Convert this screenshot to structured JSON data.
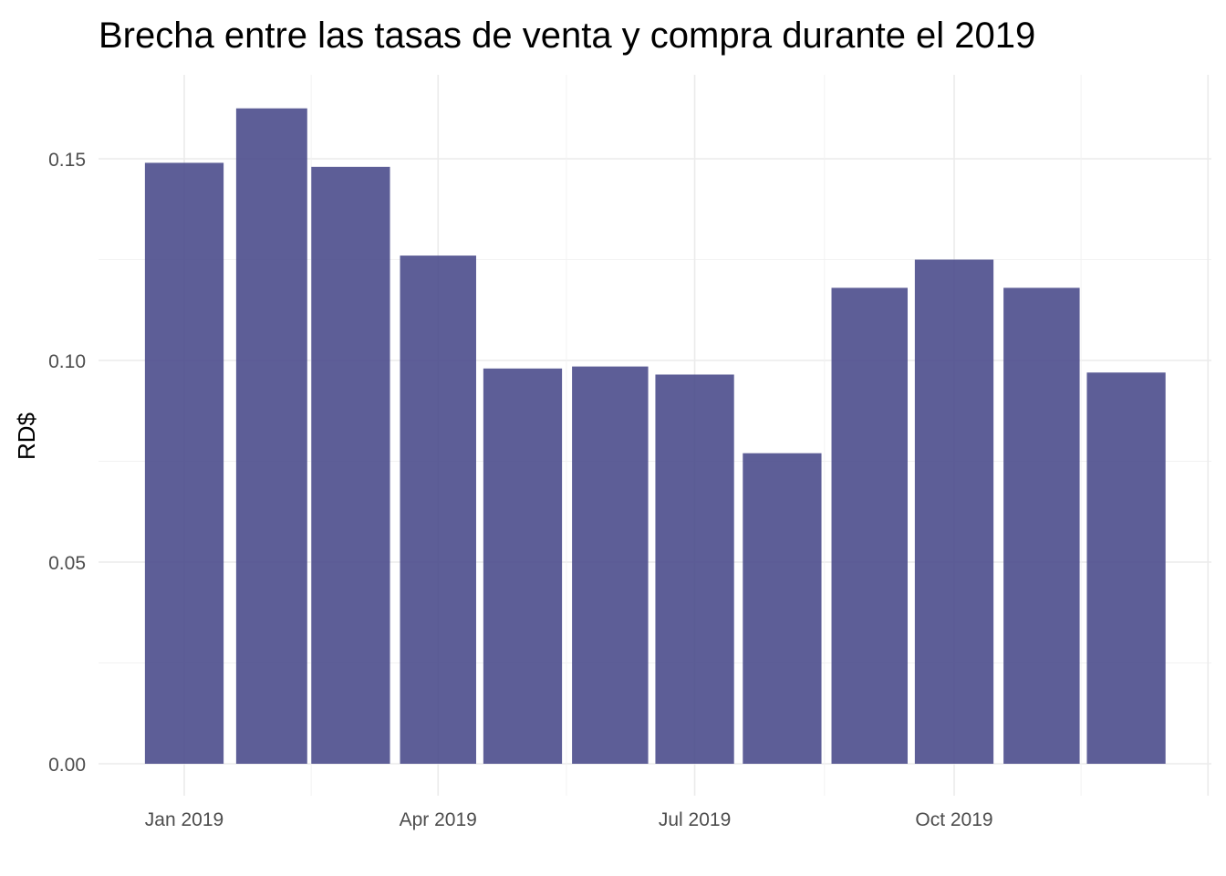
{
  "chart_data": {
    "type": "bar",
    "title": "Brecha entre las tasas de venta y compra durante el 2019",
    "xlabel": "",
    "ylabel": "RD$",
    "x": [
      "2019-01",
      "2019-02",
      "2019-03",
      "2019-04",
      "2019-05",
      "2019-06",
      "2019-07",
      "2019-08",
      "2019-09",
      "2019-10",
      "2019-11",
      "2019-12"
    ],
    "values": [
      0.149,
      0.1625,
      0.148,
      0.126,
      0.098,
      0.0985,
      0.0965,
      0.077,
      0.118,
      0.125,
      0.118,
      0.097
    ],
    "ylim": [
      0,
      0.16
    ],
    "yticks": [
      0.0,
      0.05,
      0.1,
      0.15
    ],
    "ytick_labels": [
      "0.00",
      "0.05",
      "0.10",
      "0.15"
    ],
    "xticks": [
      "2019-01",
      "2019-04",
      "2019-07",
      "2019-10"
    ],
    "xtick_labels": [
      "Jan 2019",
      "Apr 2019",
      "Jul 2019",
      "Oct 2019"
    ],
    "bar_color": "#4b4c8c",
    "grid": true,
    "legend": "none"
  }
}
